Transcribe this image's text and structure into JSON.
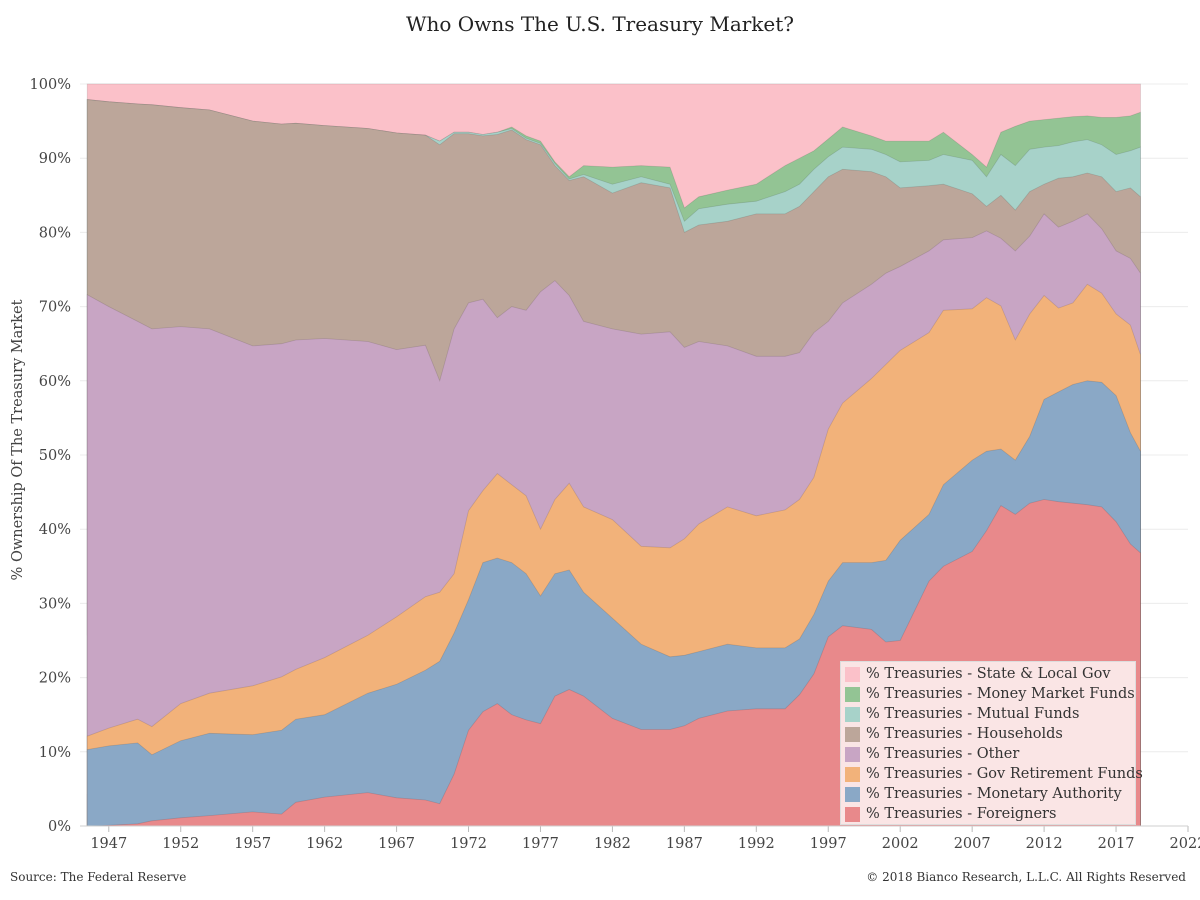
{
  "header": {
    "title": "Who Owns The U.S. Treasury Market?"
  },
  "footer": {
    "source": "Source: The Federal Reserve",
    "copyright": "© 2018 Bianco Research, L.L.C. All Rights Reserved"
  },
  "chart_data": {
    "type": "area",
    "stacked": true,
    "title": "Who Owns The U.S. Treasury Market?",
    "xlabel": "",
    "ylabel": "% Ownership Of The Treasury Market",
    "xlim": [
      1945,
      2022
    ],
    "ylim": [
      0,
      100
    ],
    "x_ticks": [
      1947,
      1952,
      1957,
      1962,
      1967,
      1972,
      1977,
      1982,
      1987,
      1992,
      1997,
      2002,
      2007,
      2012,
      2017,
      2022
    ],
    "y_ticks": [
      0,
      10,
      20,
      30,
      40,
      50,
      60,
      70,
      80,
      90,
      100
    ],
    "y_tick_labels": [
      "0%",
      "10%",
      "20%",
      "30%",
      "40%",
      "50%",
      "60%",
      "70%",
      "80%",
      "90%",
      "100%"
    ],
    "grid": true,
    "legend_position": "bottom-right",
    "x": [
      1945.5,
      1947,
      1949,
      1950,
      1952,
      1954,
      1957,
      1959,
      1960,
      1962,
      1965,
      1967,
      1969,
      1970,
      1971,
      1972,
      1973,
      1974,
      1975,
      1976,
      1977,
      1978,
      1979,
      1980,
      1982,
      1984,
      1986,
      1987,
      1988,
      1990,
      1992,
      1994,
      1995,
      1996,
      1997,
      1998,
      2000,
      2001,
      2002,
      2004,
      2005,
      2007,
      2008,
      2009,
      2010,
      2011,
      2012,
      2013,
      2014,
      2015,
      2016,
      2017,
      2018,
      2018.7
    ],
    "series": [
      {
        "name": "% Treasuries - Foreigners",
        "color": "#e8898b",
        "values": [
          0,
          0.1,
          0.3,
          0.7,
          1.1,
          1.4,
          1.9,
          1.6,
          3.2,
          3.9,
          4.5,
          3.8,
          3.5,
          3,
          7,
          12.9,
          15.4,
          16.5,
          15,
          14.3,
          13.8,
          17.5,
          18.4,
          17.5,
          14.5,
          13,
          13,
          13.5,
          14.5,
          15.5,
          15.8,
          15.8,
          17.7,
          20.5,
          25.5,
          27,
          26.5,
          24.8,
          25,
          33,
          35,
          37,
          39.8,
          43.2,
          42,
          43.5,
          44,
          43.7,
          43.5,
          43.3,
          43,
          41,
          38,
          36.8
        ]
      },
      {
        "name": "% Treasuries - Monetary Authority",
        "color": "#8aa8c6",
        "values": [
          10.3,
          10.8,
          11.2,
          9.6,
          11.5,
          12.5,
          12.3,
          12.9,
          14.4,
          15,
          17.9,
          19.1,
          21,
          22.2,
          26,
          30.5,
          35.5,
          36.1,
          35.5,
          34,
          31,
          34,
          34.5,
          31.5,
          28,
          24.5,
          22.8,
          23,
          23.5,
          24.5,
          24,
          24,
          25.2,
          28.5,
          33,
          35.5,
          35.5,
          35.8,
          38.5,
          42,
          46,
          49.3,
          50.5,
          50.8,
          49.3,
          52.5,
          57.5,
          58.5,
          59.5,
          60,
          59.8,
          58,
          53,
          50.5
        ]
      },
      {
        "name": "% Treasuries - Gov Retirement Funds",
        "color": "#f2b27a",
        "values": [
          12.1,
          13.2,
          14.4,
          13.4,
          16.5,
          17.9,
          18.9,
          20.1,
          21.1,
          22.7,
          25.7,
          28.2,
          30.9,
          31.5,
          34,
          42.5,
          45.2,
          47.5,
          46,
          44.5,
          40,
          44,
          46.2,
          43,
          41.3,
          37.7,
          37.5,
          38.7,
          40.7,
          43,
          41.8,
          42.6,
          44,
          47,
          53.5,
          57,
          60.3,
          62.2,
          64.1,
          66.5,
          69.5,
          69.7,
          71.2,
          70.1,
          65.5,
          69,
          71.5,
          69.8,
          70.5,
          73,
          71.8,
          69,
          67.5,
          63.5
        ]
      },
      {
        "name": "% Treasuries - Other",
        "color": "#c8a5c4",
        "values": [
          71.6,
          70,
          68,
          67,
          67.3,
          67,
          64.7,
          65,
          65.5,
          65.7,
          65.3,
          64.2,
          64.8,
          60,
          67,
          70.5,
          71,
          68.5,
          70,
          69.5,
          72,
          73.5,
          71.5,
          68,
          67,
          66.3,
          66.6,
          64.5,
          65.3,
          64.7,
          63.3,
          63.3,
          63.8,
          66.5,
          68,
          70.5,
          73,
          74.5,
          75.4,
          77.5,
          79,
          79.3,
          80.2,
          79.2,
          77.5,
          79.5,
          82.5,
          80.7,
          81.5,
          82.5,
          80.5,
          77.5,
          76.5,
          74.5
        ]
      },
      {
        "name": "% Treasuries - Households",
        "color": "#bca69a",
        "values": [
          97.9,
          97.6,
          97.3,
          97.2,
          96.8,
          96.5,
          95,
          94.6,
          94.7,
          94.4,
          94,
          93.4,
          93.1,
          91.8,
          93.3,
          93.3,
          93,
          93.2,
          93.8,
          92.5,
          91.8,
          89,
          87,
          87.5,
          85.3,
          86.7,
          86,
          80,
          81,
          81.5,
          82.5,
          82.5,
          83.5,
          85.5,
          87.5,
          88.5,
          88.2,
          87.5,
          86,
          86.3,
          86.5,
          85.2,
          83.5,
          85,
          83,
          85.5,
          86.5,
          87.3,
          87.5,
          88,
          87.5,
          85.5,
          86,
          84.8
        ]
      },
      {
        "name": "% Treasuries - Mutual Funds",
        "color": "#a7d2c9",
        "values": [
          97.9,
          97.6,
          97.3,
          97.2,
          96.8,
          96.5,
          95,
          94.6,
          94.7,
          94.4,
          94,
          93.4,
          93.1,
          92.3,
          93.5,
          93.5,
          93.2,
          93.5,
          94,
          92.7,
          92,
          89.3,
          87.2,
          87.8,
          86.5,
          87.5,
          86.5,
          81.5,
          83.2,
          83.8,
          84.2,
          85.5,
          86.5,
          88.5,
          90.2,
          91.5,
          91.2,
          90.5,
          89.5,
          89.7,
          90.5,
          89.7,
          87.5,
          90.5,
          89,
          91.2,
          91.5,
          91.7,
          92.2,
          92.5,
          91.8,
          90.5,
          91,
          91.5
        ]
      },
      {
        "name": "% Treasuries - Money Market Funds",
        "color": "#93c494",
        "values": [
          97.9,
          97.6,
          97.3,
          97.2,
          96.8,
          96.5,
          95,
          94.6,
          94.7,
          94.4,
          94,
          93.4,
          93.1,
          92.3,
          93.5,
          93.5,
          93.2,
          93.5,
          94.2,
          93,
          92.3,
          89.5,
          87.5,
          89,
          88.8,
          89,
          88.8,
          83.3,
          84.8,
          85.7,
          86.5,
          89,
          90,
          91,
          92.6,
          94.2,
          93,
          92.3,
          92.3,
          92.3,
          93.5,
          90.5,
          88.8,
          93.5,
          94.3,
          95,
          95.2,
          95.4,
          95.6,
          95.7,
          95.5,
          95.5,
          95.7,
          96.2
        ]
      },
      {
        "name": "% Treasuries - State & Local Gov",
        "color": "#fbc1c9",
        "values": [
          100,
          100,
          100,
          100,
          100,
          100,
          100,
          100,
          100,
          100,
          100,
          100,
          100,
          100,
          100,
          100,
          100,
          100,
          100,
          100,
          100,
          100,
          100,
          100,
          100,
          100,
          100,
          100,
          100,
          100,
          100,
          100,
          100,
          100,
          100,
          100,
          100,
          100,
          100,
          100,
          100,
          100,
          100,
          100,
          100,
          100,
          100,
          100,
          100,
          100,
          100,
          100,
          100,
          100
        ]
      }
    ]
  }
}
